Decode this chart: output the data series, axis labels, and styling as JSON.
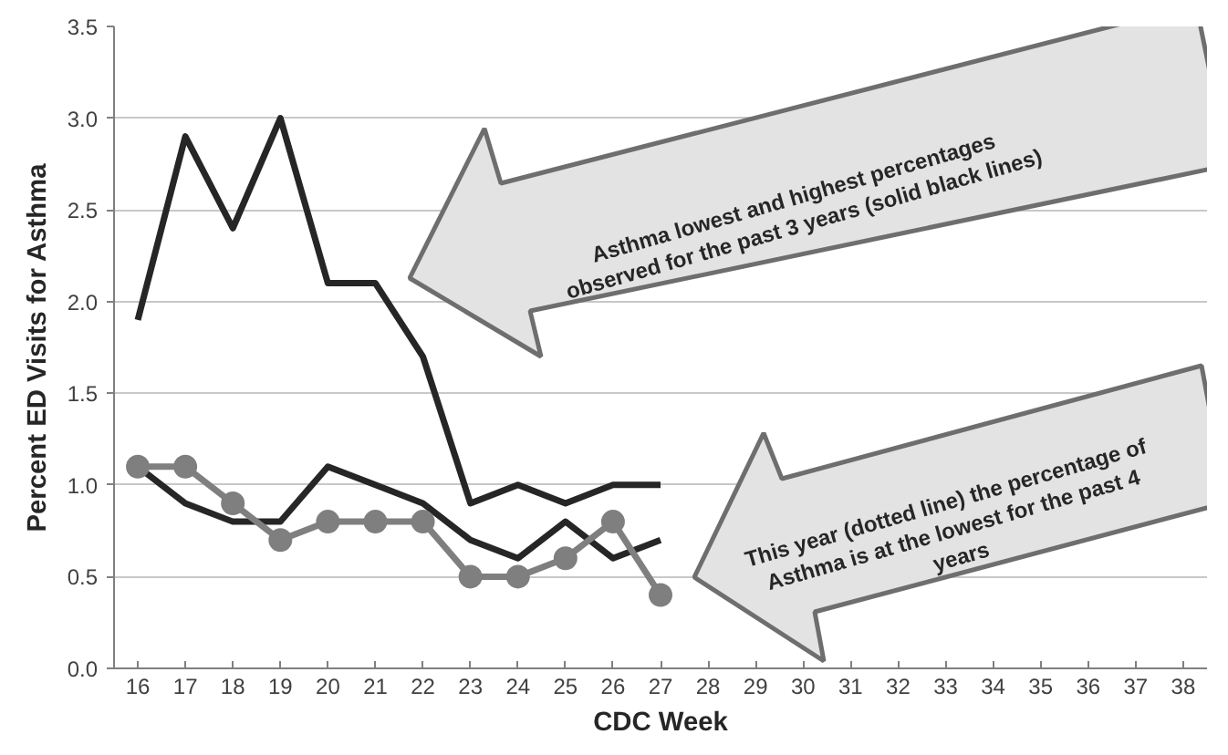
{
  "chart_data": {
    "type": "line",
    "xlabel": "CDC Week",
    "ylabel": "Percent ED Visits for Asthma",
    "categories": [
      "16",
      "17",
      "18",
      "19",
      "20",
      "21",
      "22",
      "23",
      "24",
      "25",
      "26",
      "27",
      "28",
      "29",
      "30",
      "31",
      "32",
      "33",
      "34",
      "35",
      "36",
      "37",
      "38"
    ],
    "series": [
      {
        "color": "#262626",
        "marker": "none",
        "values": [
          1.9,
          2.9,
          2.4,
          3.0,
          2.1,
          2.1,
          1.7,
          0.9,
          1.0,
          0.9,
          1.0,
          1.0,
          null,
          null,
          null,
          null,
          null,
          null,
          null,
          null,
          null,
          null,
          null
        ]
      },
      {
        "color": "#262626",
        "marker": "none",
        "values": [
          1.1,
          0.9,
          0.8,
          0.8,
          1.1,
          1.0,
          0.9,
          0.7,
          0.6,
          0.8,
          0.6,
          0.7,
          null,
          null,
          null,
          null,
          null,
          null,
          null,
          null,
          null,
          null,
          null
        ]
      },
      {
        "color": "#7f7f7f",
        "marker": "circle",
        "values": [
          1.1,
          1.1,
          0.9,
          0.7,
          0.8,
          0.8,
          0.8,
          0.5,
          0.5,
          0.6,
          0.8,
          0.4,
          null,
          null,
          null,
          null,
          null,
          null,
          null,
          null,
          null,
          null,
          null
        ]
      }
    ],
    "ylim": [
      0,
      3.5
    ],
    "yticks": [
      {
        "value": 0,
        "label": "0.0"
      },
      {
        "value": 0.5,
        "label": "0.5"
      },
      {
        "value": 1,
        "label": "1.0"
      },
      {
        "value": 1.5,
        "label": "1.5"
      },
      {
        "value": 2,
        "label": "2.0"
      },
      {
        "value": 2.5,
        "label": "2.5"
      },
      {
        "value": 3,
        "label": "3.0"
      },
      {
        "value": 3.5,
        "label": "3.5"
      }
    ],
    "grid": "y",
    "line_style": "solid",
    "annotations": [
      "Asthma  lowest and highest percentages\nobserved for the past 3 years (solid black lines)",
      "This year (dotted line) the percentage of\nAsthma is at the lowest for the past 4\nyears"
    ]
  }
}
